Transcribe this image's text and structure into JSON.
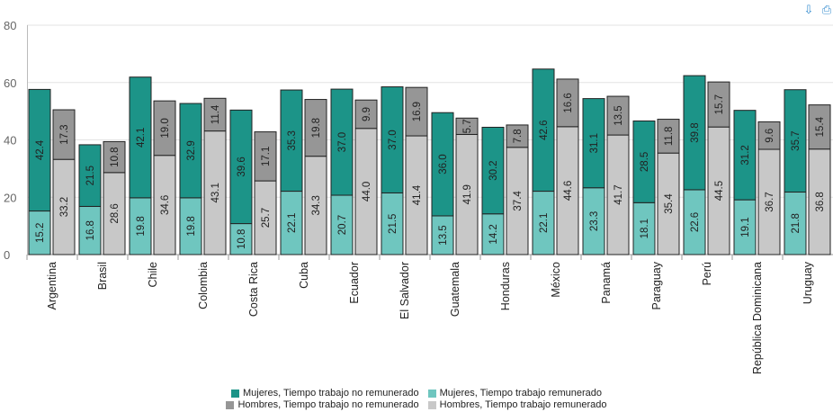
{
  "toolbar": {
    "download_icon": "download-icon",
    "print_icon": "print-icon"
  },
  "colors": {
    "women_unpaid": "#1c9488",
    "women_paid": "#6fc6bf",
    "men_unpaid": "#969696",
    "men_paid": "#c8c8c8"
  },
  "chart_data": {
    "type": "bar",
    "stacked": true,
    "grouped": true,
    "ylim": [
      0,
      80
    ],
    "yticks": [
      0,
      20,
      40,
      60,
      80
    ],
    "grid": true,
    "legend_position": "bottom",
    "categories": [
      "Argentina",
      "Brasil",
      "Chile",
      "Colombia",
      "Costa Rica",
      "Cuba",
      "Ecuador",
      "El Salvador",
      "Guatemala",
      "Honduras",
      "México",
      "Panamá",
      "Paraguay",
      "Perú",
      "República Dominicana",
      "Uruguay"
    ],
    "series": [
      {
        "name": "Mujeres, Tiempo trabajo no remunerado",
        "group": "mujeres",
        "values": [
          42.4,
          21.5,
          42.1,
          32.9,
          39.6,
          35.3,
          37.0,
          37.0,
          36.0,
          30.2,
          42.6,
          31.1,
          28.5,
          39.8,
          31.2,
          35.7
        ]
      },
      {
        "name": "Mujeres, Tiempo trabajo remunerado",
        "group": "mujeres",
        "values": [
          15.2,
          16.8,
          19.8,
          19.8,
          10.8,
          22.1,
          20.7,
          21.5,
          13.5,
          14.2,
          22.1,
          23.3,
          18.1,
          22.6,
          19.1,
          21.8
        ]
      },
      {
        "name": "Hombres, Tiempo trabajo no remunerado",
        "group": "hombres",
        "values": [
          17.3,
          10.8,
          19.0,
          11.4,
          17.1,
          19.8,
          9.9,
          16.9,
          5.7,
          7.8,
          16.6,
          13.5,
          11.8,
          15.7,
          9.6,
          15.4
        ]
      },
      {
        "name": "Hombres, Tiempo trabajo remunerado",
        "group": "hombres",
        "values": [
          33.2,
          28.6,
          34.6,
          43.1,
          25.7,
          34.3,
          44.0,
          41.4,
          41.9,
          37.4,
          44.6,
          41.7,
          35.4,
          44.5,
          36.7,
          36.8
        ]
      }
    ]
  }
}
